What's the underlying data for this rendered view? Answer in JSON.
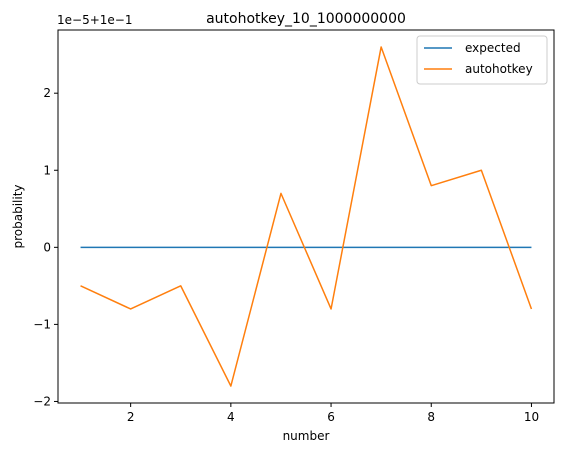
{
  "chart_data": {
    "type": "line",
    "title": "autohotkey_10_1000000000",
    "xlabel": "number",
    "ylabel": "probability",
    "offset_label": "1e−5+1e−1",
    "x": [
      1,
      2,
      3,
      4,
      5,
      6,
      7,
      8,
      9,
      10
    ],
    "xlim": [
      0.55,
      10.45
    ],
    "ylim": [
      -2.02,
      2.82
    ],
    "xticks": [
      2,
      4,
      6,
      8,
      10
    ],
    "yticks": [
      -2,
      -1,
      0,
      1,
      2
    ],
    "ytick_labels": [
      "−2",
      "−1",
      "0",
      "1",
      "2"
    ],
    "grid": false,
    "legend_position": "top-right",
    "series": [
      {
        "name": "expected",
        "color": "#1f77b4",
        "values": [
          0,
          0,
          0,
          0,
          0,
          0,
          0,
          0,
          0,
          0
        ]
      },
      {
        "name": "autohotkey",
        "color": "#ff7f0e",
        "values": [
          -0.5,
          -0.8,
          -0.5,
          -1.8,
          0.7,
          -0.8,
          2.6,
          0.8,
          1.0,
          -0.8
        ]
      }
    ]
  }
}
